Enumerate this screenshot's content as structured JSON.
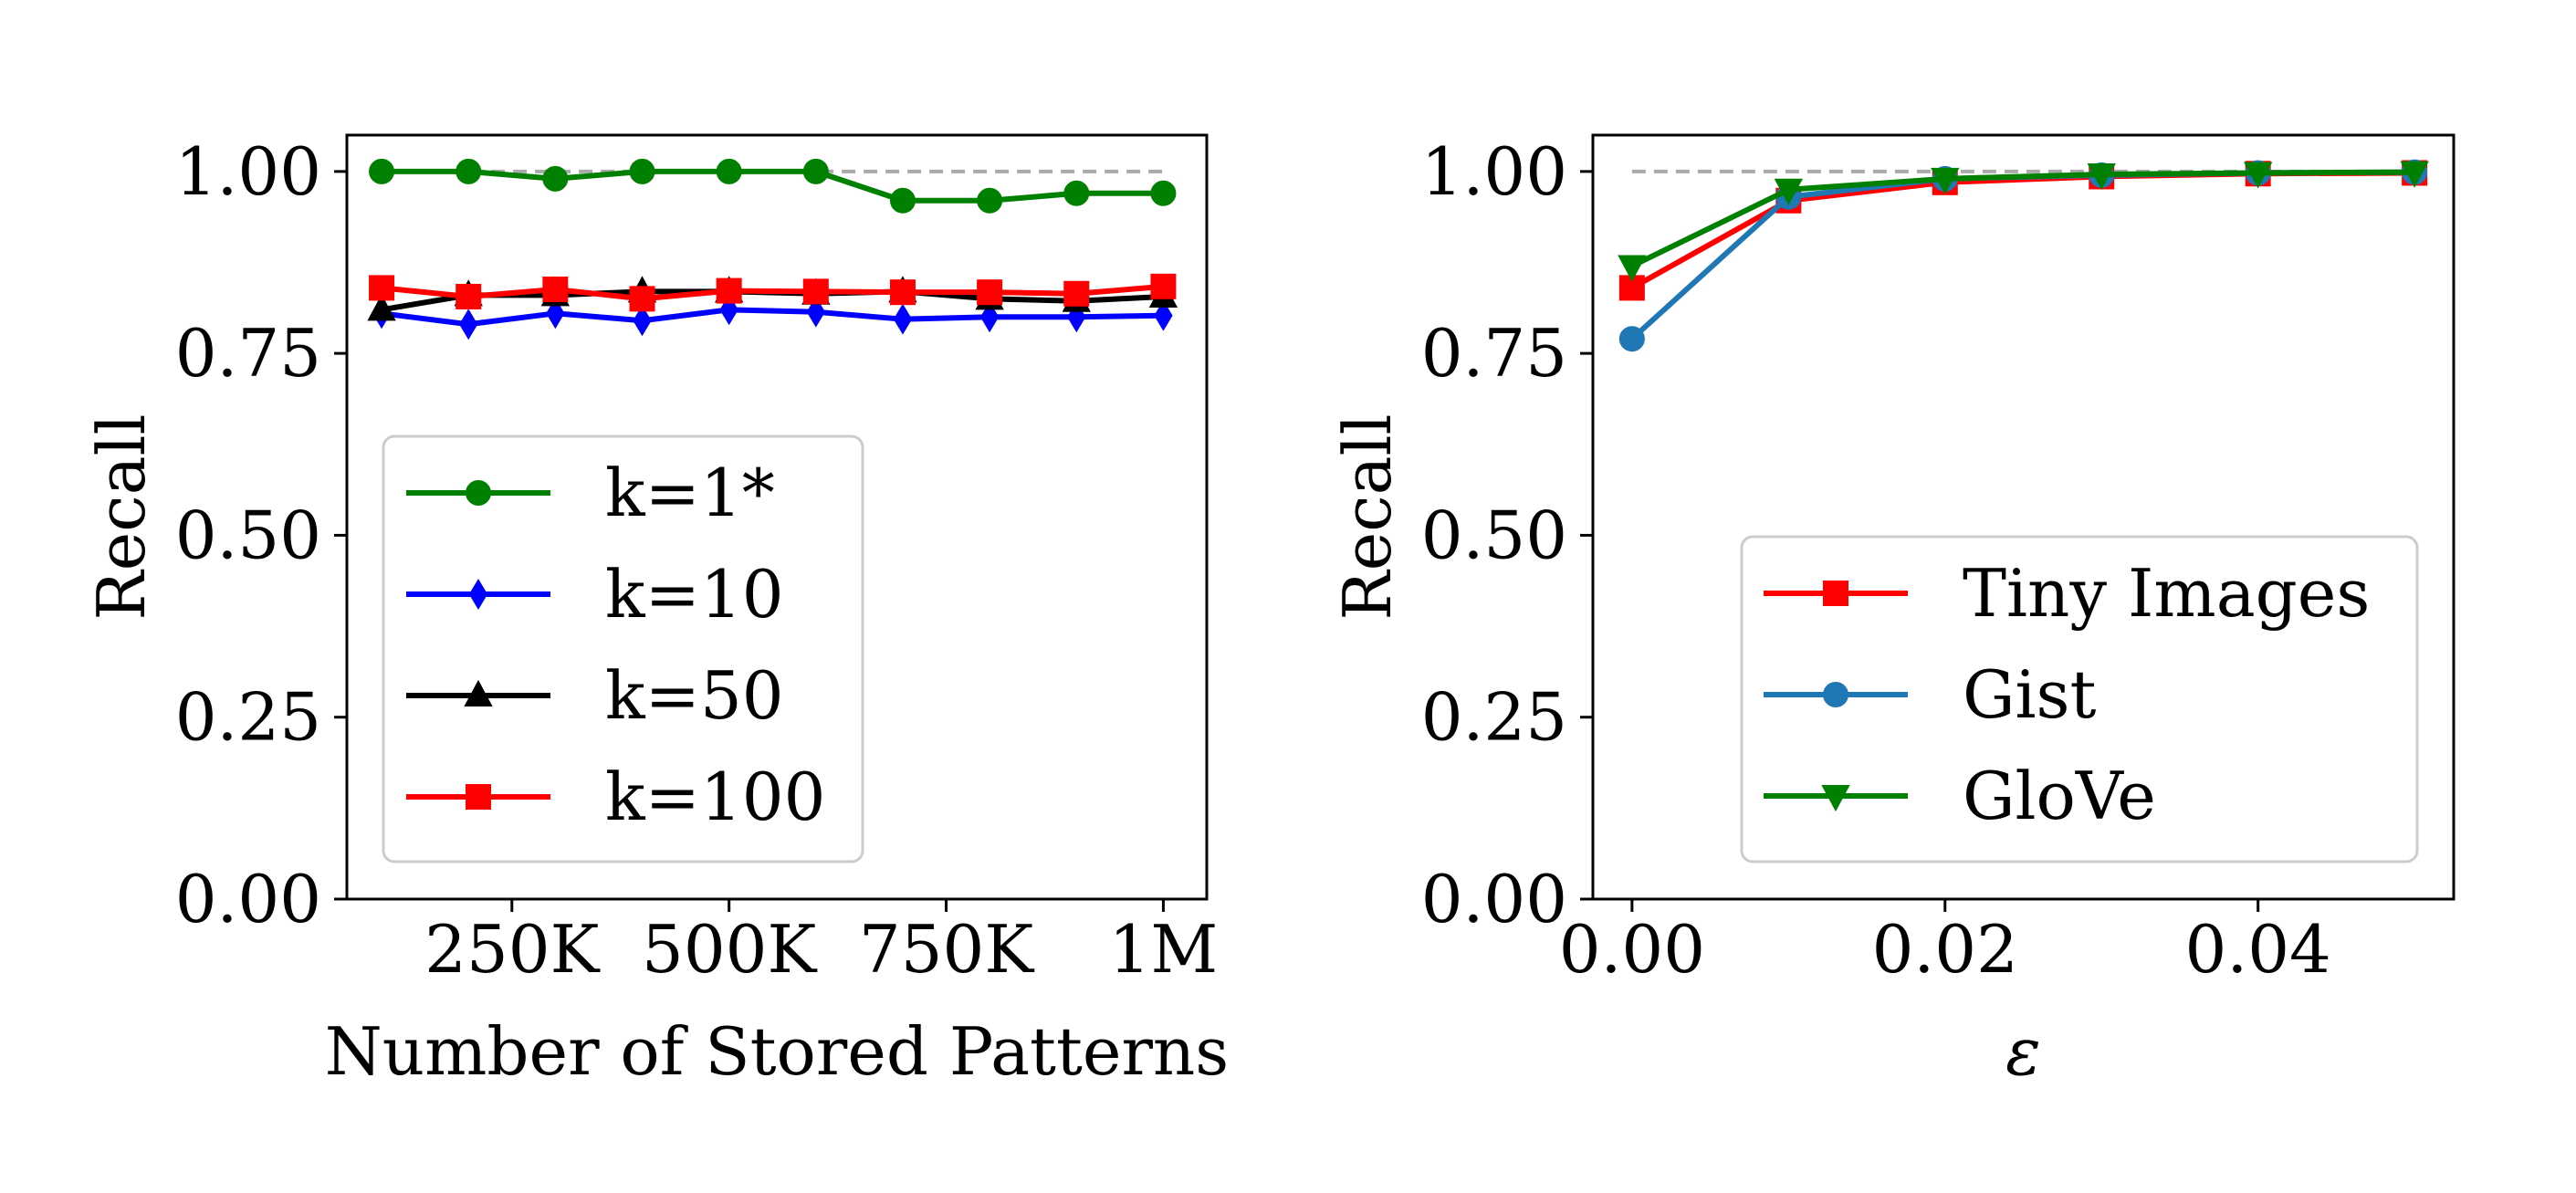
{
  "chart_data": [
    {
      "type": "line",
      "xlabel": "Number of Stored Patterns",
      "ylabel": "Recall",
      "xlim": [
        60000,
        1050000
      ],
      "ylim": [
        0.0,
        1.05
      ],
      "xticks": [
        {
          "v": 250000,
          "label": "250K"
        },
        {
          "v": 500000,
          "label": "500K"
        },
        {
          "v": 750000,
          "label": "750K"
        },
        {
          "v": 1000000,
          "label": "1M"
        }
      ],
      "yticks": [
        {
          "v": 0.0,
          "label": "0.00"
        },
        {
          "v": 0.25,
          "label": "0.25"
        },
        {
          "v": 0.5,
          "label": "0.50"
        },
        {
          "v": 0.75,
          "label": "0.75"
        },
        {
          "v": 1.0,
          "label": "1.00"
        }
      ],
      "reference_line": {
        "y": 1.0,
        "x_from": 100000,
        "x_to": 1000000,
        "color": "#aaaaaa"
      },
      "legend_position": "center-left",
      "x": [
        100000,
        200000,
        300000,
        400000,
        500000,
        600000,
        700000,
        800000,
        900000,
        1000000
      ],
      "series": [
        {
          "name": "k=1*",
          "color": "#008000",
          "marker": "circle",
          "values": [
            1.0,
            1.0,
            0.99,
            1.0,
            1.0,
            1.0,
            0.96,
            0.96,
            0.97,
            0.97
          ]
        },
        {
          "name": "k=10",
          "color": "#0000ff",
          "marker": "thin_diamond",
          "values": [
            0.805,
            0.79,
            0.805,
            0.795,
            0.81,
            0.807,
            0.797,
            0.8,
            0.8,
            0.802
          ]
        },
        {
          "name": "k=50",
          "color": "#000000",
          "marker": "triangle_up",
          "values": [
            0.81,
            0.83,
            0.83,
            0.835,
            0.835,
            0.832,
            0.835,
            0.825,
            0.822,
            0.828
          ]
        },
        {
          "name": "k=100",
          "color": "#ff0000",
          "marker": "square",
          "values": [
            0.84,
            0.828,
            0.838,
            0.825,
            0.836,
            0.835,
            0.834,
            0.834,
            0.832,
            0.842
          ]
        }
      ]
    },
    {
      "type": "line",
      "xlabel": "ε",
      "ylabel": "Recall",
      "xlim": [
        -0.0025,
        0.0525
      ],
      "ylim": [
        0.0,
        1.05
      ],
      "xticks": [
        {
          "v": 0.0,
          "label": "0.00"
        },
        {
          "v": 0.02,
          "label": "0.02"
        },
        {
          "v": 0.04,
          "label": "0.04"
        }
      ],
      "yticks": [
        {
          "v": 0.0,
          "label": "0.00"
        },
        {
          "v": 0.25,
          "label": "0.25"
        },
        {
          "v": 0.5,
          "label": "0.50"
        },
        {
          "v": 0.75,
          "label": "0.75"
        },
        {
          "v": 1.0,
          "label": "1.00"
        }
      ],
      "reference_line": {
        "y": 1.0,
        "x_from": 0.0,
        "x_to": 0.05,
        "color": "#aaaaaa"
      },
      "legend_position": "lower-right",
      "x": [
        0.0,
        0.01,
        0.02,
        0.03,
        0.04,
        0.05
      ],
      "series": [
        {
          "name": "Tiny Images",
          "color": "#ff0000",
          "marker": "square",
          "values": [
            0.84,
            0.96,
            0.985,
            0.993,
            0.997,
            0.998
          ]
        },
        {
          "name": "Gist",
          "color": "#1f77b4",
          "marker": "circle",
          "values": [
            0.77,
            0.965,
            0.99,
            0.995,
            0.998,
            0.999
          ]
        },
        {
          "name": "GloVe",
          "color": "#008000",
          "marker": "triangle_down",
          "values": [
            0.87,
            0.975,
            0.99,
            0.996,
            0.998,
            0.999
          ]
        }
      ]
    }
  ]
}
